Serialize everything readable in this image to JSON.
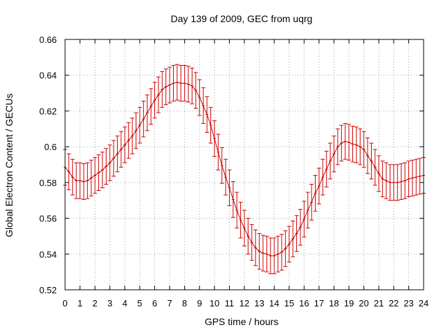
{
  "chart_data": {
    "type": "line",
    "title": "Day 139 of 2009, GEC from uqrg",
    "xlabel": "GPS time / hours",
    "ylabel": "Global Electron Content / GECUs",
    "xlim": [
      0,
      24
    ],
    "ylim": [
      0.52,
      0.66
    ],
    "x_ticks": [
      "0",
      "1",
      "2",
      "3",
      "4",
      "5",
      "6",
      "7",
      "8",
      "9",
      "10",
      "11",
      "12",
      "13",
      "14",
      "15",
      "16",
      "17",
      "18",
      "19",
      "20",
      "21",
      "22",
      "23",
      "24"
    ],
    "y_ticks": [
      "0.52",
      "0.54",
      "0.56",
      "0.58",
      "0.6",
      "0.62",
      "0.64",
      "0.66"
    ],
    "grid": true,
    "series_color": "#cc0000",
    "error_bar_halfwidth": 0.01,
    "series": [
      {
        "name": "GEC",
        "x": [
          0,
          0.25,
          0.5,
          0.75,
          1,
          1.25,
          1.5,
          1.75,
          2,
          2.25,
          2.5,
          2.75,
          3,
          3.25,
          3.5,
          3.75,
          4,
          4.25,
          4.5,
          4.75,
          5,
          5.25,
          5.5,
          5.75,
          6,
          6.25,
          6.5,
          6.75,
          7,
          7.25,
          7.5,
          7.75,
          8,
          8.25,
          8.5,
          8.75,
          9,
          9.25,
          9.5,
          9.75,
          10,
          10.25,
          10.5,
          10.75,
          11,
          11.25,
          11.5,
          11.75,
          12,
          12.25,
          12.5,
          12.75,
          13,
          13.25,
          13.5,
          13.75,
          14,
          14.25,
          14.5,
          14.75,
          15,
          15.25,
          15.5,
          15.75,
          16,
          16.25,
          16.5,
          16.75,
          17,
          17.25,
          17.5,
          17.75,
          18,
          18.25,
          18.5,
          18.75,
          19,
          19.25,
          19.5,
          19.75,
          20,
          20.25,
          20.5,
          20.75,
          21,
          21.25,
          21.5,
          21.75,
          22,
          22.25,
          22.5,
          22.75,
          23,
          23.25,
          23.5,
          23.75,
          24
        ],
        "y": [
          0.5885,
          0.586,
          0.583,
          0.581,
          0.581,
          0.5805,
          0.581,
          0.5825,
          0.584,
          0.5855,
          0.587,
          0.589,
          0.591,
          0.5935,
          0.596,
          0.5985,
          0.601,
          0.6035,
          0.606,
          0.609,
          0.612,
          0.6155,
          0.619,
          0.6225,
          0.626,
          0.629,
          0.632,
          0.6335,
          0.6345,
          0.6355,
          0.636,
          0.6355,
          0.6355,
          0.635,
          0.634,
          0.6315,
          0.6275,
          0.623,
          0.618,
          0.612,
          0.6045,
          0.597,
          0.5895,
          0.583,
          0.577,
          0.5705,
          0.5645,
          0.559,
          0.5545,
          0.55,
          0.5465,
          0.5435,
          0.5415,
          0.5405,
          0.54,
          0.539,
          0.539,
          0.54,
          0.541,
          0.543,
          0.5455,
          0.5485,
          0.5515,
          0.555,
          0.5595,
          0.5645,
          0.569,
          0.574,
          0.578,
          0.583,
          0.5875,
          0.592,
          0.596,
          0.6,
          0.602,
          0.603,
          0.6025,
          0.6015,
          0.601,
          0.6,
          0.5985,
          0.595,
          0.592,
          0.5885,
          0.585,
          0.582,
          0.581,
          0.58,
          0.58,
          0.58,
          0.5805,
          0.581,
          0.582,
          0.5825,
          0.583,
          0.5835,
          0.584
        ]
      }
    ]
  }
}
